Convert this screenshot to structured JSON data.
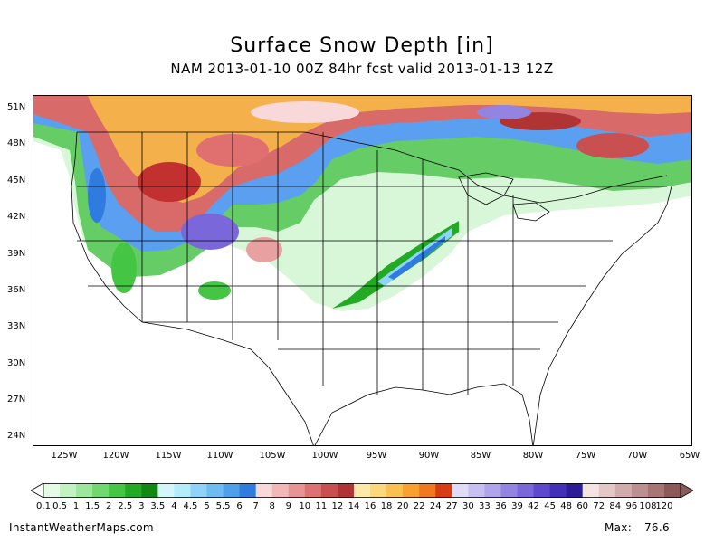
{
  "title": "Surface Snow Depth [in]",
  "subtitle": "NAM 2013-01-10 00Z 84hr fcst valid 2013-01-13 12Z",
  "lat_labels": [
    "51N",
    "48N",
    "45N",
    "42N",
    "39N",
    "36N",
    "33N",
    "30N",
    "27N",
    "24N"
  ],
  "lon_labels": [
    "125W",
    "120W",
    "115W",
    "110W",
    "105W",
    "100W",
    "95W",
    "90W",
    "85W",
    "80W",
    "75W",
    "70W",
    "65W"
  ],
  "colorbar": {
    "labels": [
      "0.1",
      "0.5",
      "1",
      "1.5",
      "2",
      "2.5",
      "3",
      "3.5",
      "4",
      "4.5",
      "5",
      "5.5",
      "6",
      "7",
      "8",
      "9",
      "10",
      "11",
      "12",
      "14",
      "16",
      "18",
      "20",
      "22",
      "24",
      "27",
      "30",
      "33",
      "36",
      "39",
      "42",
      "45",
      "48",
      "60",
      "72",
      "84",
      "96",
      "108",
      "120"
    ],
    "colors": [
      "#e6fbe6",
      "#c2f2c2",
      "#9be79b",
      "#6fd86f",
      "#44c544",
      "#22aa22",
      "#118811",
      "#d4f6fb",
      "#b3ecfb",
      "#8fd4f8",
      "#6fbcf2",
      "#4f9fea",
      "#2f7be0",
      "#f8d8d8",
      "#f2b8b8",
      "#e89494",
      "#dc7272",
      "#c85050",
      "#b03434",
      "#fce8a8",
      "#fcd87a",
      "#fcc050",
      "#f8a030",
      "#f07820",
      "#d83c14",
      "#e0dcf8",
      "#c8c0f2",
      "#b0a4ec",
      "#9484e2",
      "#7a68da",
      "#5e48cc",
      "#4430b8",
      "#2c1c98",
      "#f4e4e4",
      "#e4c8c8",
      "#d0acac",
      "#bc9090",
      "#a87474",
      "#8c5858"
    ]
  },
  "credit": "InstantWeatherMaps.com",
  "max_label": "Max:",
  "max_value": "76.6"
}
